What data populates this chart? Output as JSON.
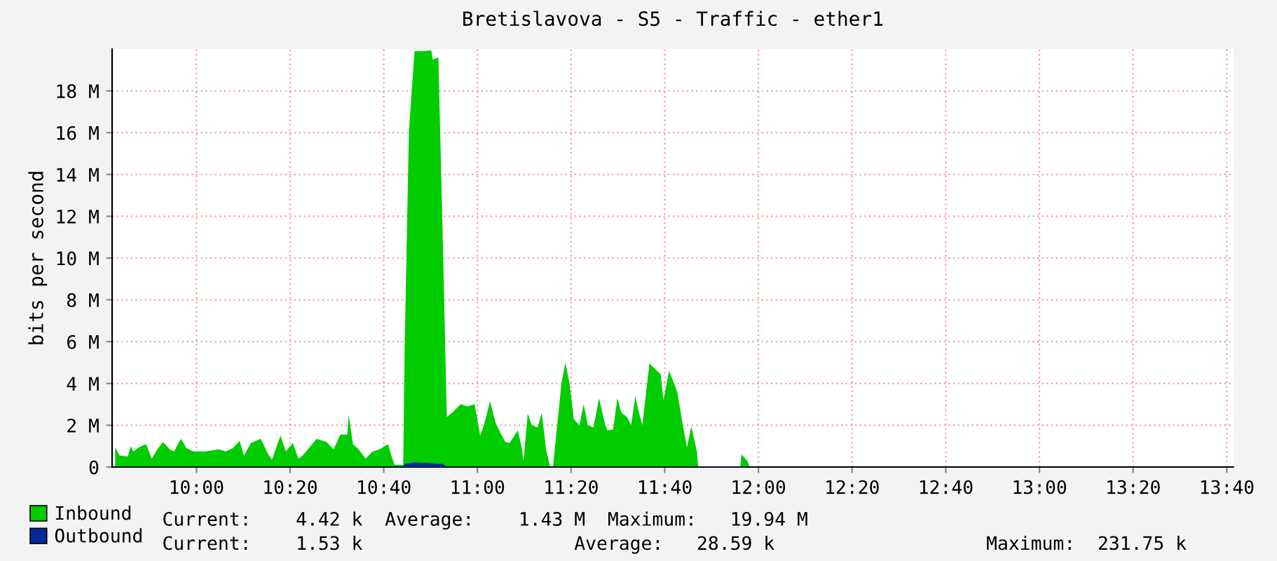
{
  "chart_data": {
    "type": "area",
    "title": "Bretislavova - S5 - Traffic - ether1",
    "ylabel": "bits per second",
    "xlim": [
      9.7,
      13.69
    ],
    "ylim": [
      0,
      20
    ],
    "xticks": [
      {
        "value": 10,
        "label": "10:00"
      },
      {
        "value": 10.3333,
        "label": "10:20"
      },
      {
        "value": 10.6667,
        "label": "10:40"
      },
      {
        "value": 11,
        "label": "11:00"
      },
      {
        "value": 11.3333,
        "label": "11:20"
      },
      {
        "value": 11.6667,
        "label": "11:40"
      },
      {
        "value": 12,
        "label": "12:00"
      },
      {
        "value": 12.3333,
        "label": "12:20"
      },
      {
        "value": 12.6667,
        "label": "12:40"
      },
      {
        "value": 13,
        "label": "13:00"
      },
      {
        "value": 13.3333,
        "label": "13:20"
      },
      {
        "value": 13.6667,
        "label": "13:40"
      }
    ],
    "yticks": [
      0,
      {
        "value": 2,
        "label": "2 M"
      },
      {
        "value": 4,
        "label": "4 M"
      },
      {
        "value": 6,
        "label": "6 M"
      },
      {
        "value": 8,
        "label": "8 M"
      },
      {
        "value": 10,
        "label": "10 M"
      },
      {
        "value": 12,
        "label": "12 M"
      },
      {
        "value": 14,
        "label": "14 M"
      },
      {
        "value": 16,
        "label": "16 M"
      },
      {
        "value": 18,
        "label": "18 M"
      }
    ],
    "grid": true,
    "legend": "bottom",
    "series": [
      {
        "name": "Inbound",
        "color": "#00cc00",
        "x": [
          9.711,
          9.726,
          9.756,
          9.766,
          9.776,
          9.796,
          9.821,
          9.841,
          9.861,
          9.881,
          9.905,
          9.92,
          9.945,
          9.965,
          9.99,
          10.03,
          10.08,
          10.104,
          10.129,
          10.154,
          10.169,
          10.194,
          10.229,
          10.254,
          10.269,
          10.299,
          10.318,
          10.343,
          10.363,
          10.378,
          10.403,
          10.428,
          10.463,
          10.488,
          10.512,
          10.537,
          10.542,
          10.557,
          10.577,
          10.602,
          10.627,
          10.652,
          10.682,
          10.697,
          10.706,
          10.736,
          10.741,
          10.756,
          10.776,
          10.801,
          10.836,
          10.841,
          10.861,
          10.876,
          10.891,
          10.91,
          10.94,
          10.965,
          10.99,
          11.01,
          11.025,
          11.045,
          11.065,
          11.085,
          11.1,
          11.114,
          11.134,
          11.144,
          11.159,
          11.164,
          11.179,
          11.194,
          11.214,
          11.229,
          11.244,
          11.259,
          11.269,
          11.279,
          11.299,
          11.313,
          11.328,
          11.343,
          11.363,
          11.378,
          11.393,
          11.413,
          11.433,
          11.453,
          11.463,
          11.483,
          11.498,
          11.512,
          11.532,
          11.547,
          11.562,
          11.572,
          11.587,
          11.612,
          11.632,
          11.652,
          11.662,
          11.682,
          11.697,
          11.711,
          11.731,
          11.746,
          11.761,
          11.781,
          11.786,
          11.935,
          11.94,
          11.96,
          11.97
        ],
        "values": [
          0.95,
          0.55,
          0.5,
          1.0,
          0.75,
          0.95,
          1.1,
          0.4,
          0.85,
          1.2,
          0.85,
          0.75,
          1.35,
          0.9,
          0.75,
          0.75,
          0.85,
          0.75,
          0.9,
          1.25,
          0.55,
          1.15,
          1.35,
          0.65,
          0.35,
          1.5,
          0.75,
          1.15,
          0.4,
          0.55,
          0.95,
          1.35,
          1.2,
          0.85,
          1.55,
          1.55,
          2.5,
          1.1,
          0.85,
          0.4,
          0.75,
          0.85,
          1.1,
          0.4,
          0.1,
          0.1,
          5.6,
          16.0,
          19.9,
          19.9,
          19.94,
          19.5,
          19.6,
          11.3,
          2.4,
          2.6,
          3.0,
          2.9,
          3.0,
          1.5,
          2.1,
          3.15,
          2.1,
          1.55,
          1.2,
          1.15,
          1.55,
          1.75,
          0.85,
          0.25,
          2.55,
          2.0,
          1.9,
          2.6,
          0.85,
          0,
          0,
          1.35,
          4.0,
          5.0,
          4.0,
          2.3,
          2.0,
          3.0,
          2.0,
          1.9,
          3.3,
          2.1,
          1.75,
          1.8,
          3.3,
          2.6,
          2.4,
          2.0,
          3.4,
          2.75,
          2.0,
          4.95,
          4.7,
          4.45,
          3.2,
          4.6,
          4.1,
          3.6,
          2.0,
          0.95,
          1.95,
          0.75,
          0,
          0,
          0.6,
          0.3,
          0
        ]
      },
      {
        "name": "Outbound",
        "color": "#002a97",
        "x": [
          9.711,
          10.736,
          10.741,
          10.776,
          10.876,
          10.891,
          11.97
        ],
        "values": [
          0.02,
          0.02,
          0.15,
          0.23,
          0.15,
          0.02,
          0.02
        ]
      }
    ],
    "annotations": [
      "Current:    4.42 k  Average:    1.43 M  Maximum:   19.94 M",
      "Current:    1.53 k                   Average:   28.59 k                   Maximum:  231.75 k"
    ]
  }
}
